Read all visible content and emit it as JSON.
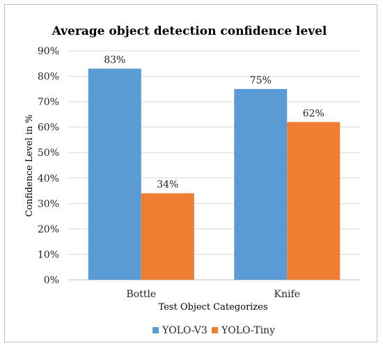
{
  "chart_data": {
    "type": "bar",
    "title": "Average object detection confidence level",
    "xlabel": "Test Object Categorizes",
    "ylabel": "Confidence Level in %",
    "categories": [
      "Bottle",
      "Knife"
    ],
    "series": [
      {
        "name": "YOLO-V3",
        "values": [
          83,
          75
        ],
        "labels": [
          "83%",
          "75%"
        ],
        "color": "#5b9bd5"
      },
      {
        "name": "YOLO-Tiny",
        "values": [
          34,
          62
        ],
        "labels": [
          "34%",
          "62%"
        ],
        "color": "#ed7d31"
      }
    ],
    "ylim": [
      0,
      90
    ],
    "yticks": [
      0,
      10,
      20,
      30,
      40,
      50,
      60,
      70,
      80,
      90
    ],
    "ytick_labels": [
      "0%",
      "10%",
      "20%",
      "30%",
      "40%",
      "50%",
      "60%",
      "70%",
      "80%",
      "90%"
    ],
    "grid": true,
    "legend_position": "bottom"
  }
}
